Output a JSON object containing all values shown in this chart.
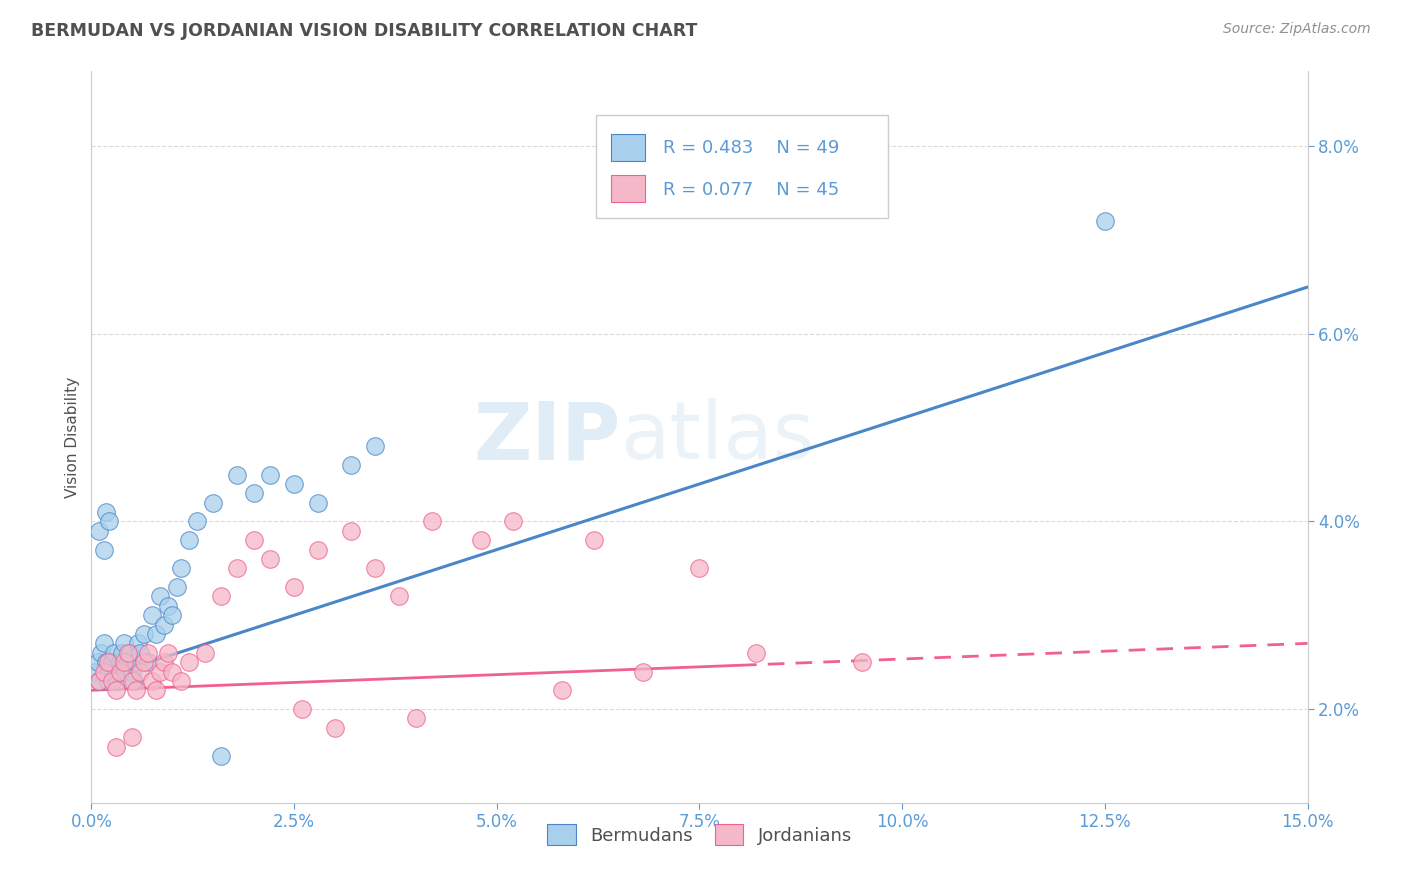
{
  "title": "BERMUDAN VS JORDANIAN VISION DISABILITY CORRELATION CHART",
  "source_text": "Source: ZipAtlas.com",
  "ylabel": "Vision Disability",
  "xmin": 0.0,
  "xmax": 15.0,
  "ymin": 1.0,
  "ymax": 8.8,
  "yticks": [
    2.0,
    4.0,
    6.0,
    8.0
  ],
  "xticks": [
    0.0,
    2.5,
    5.0,
    7.5,
    10.0,
    12.5,
    15.0
  ],
  "bermuda_color": "#A8D0EC",
  "jordan_color": "#F4B8C8",
  "bermuda_line_color": "#4A86C8",
  "jordan_line_color": "#F06090",
  "legend_R1": "R = 0.483",
  "legend_N1": "N = 49",
  "legend_R2": "R = 0.077",
  "legend_N2": "N = 45",
  "watermark_zip": "ZIP",
  "watermark_atlas": "atlas",
  "title_color": "#505050",
  "axis_color": "#5B9BD5",
  "source_color": "#909090",
  "background_color": "#FFFFFF",
  "grid_color": "#D8D8D8",
  "bermuda_x": [
    0.05,
    0.08,
    0.1,
    0.12,
    0.15,
    0.18,
    0.2,
    0.22,
    0.25,
    0.28,
    0.3,
    0.32,
    0.35,
    0.38,
    0.4,
    0.42,
    0.45,
    0.48,
    0.5,
    0.52,
    0.55,
    0.58,
    0.6,
    0.65,
    0.7,
    0.75,
    0.8,
    0.85,
    0.9,
    0.95,
    1.0,
    1.05,
    1.1,
    1.2,
    1.3,
    1.5,
    1.8,
    2.0,
    2.2,
    2.5,
    2.8,
    3.2,
    3.5,
    0.1,
    0.15,
    0.18,
    0.22,
    12.5,
    1.6
  ],
  "bermuda_y": [
    2.4,
    2.5,
    2.3,
    2.6,
    2.7,
    2.5,
    2.3,
    2.4,
    2.5,
    2.6,
    2.4,
    2.3,
    2.5,
    2.6,
    2.7,
    2.4,
    2.5,
    2.6,
    2.4,
    2.3,
    2.5,
    2.7,
    2.6,
    2.8,
    2.5,
    3.0,
    2.8,
    3.2,
    2.9,
    3.1,
    3.0,
    3.3,
    3.5,
    3.8,
    4.0,
    4.2,
    4.5,
    4.3,
    4.5,
    4.4,
    4.2,
    4.6,
    4.8,
    3.9,
    3.7,
    4.1,
    4.0,
    7.2,
    1.5
  ],
  "jordan_x": [
    0.1,
    0.15,
    0.2,
    0.25,
    0.3,
    0.35,
    0.4,
    0.45,
    0.5,
    0.55,
    0.6,
    0.65,
    0.7,
    0.75,
    0.8,
    0.85,
    0.9,
    0.95,
    1.0,
    1.1,
    1.2,
    1.4,
    1.6,
    1.8,
    2.0,
    2.2,
    2.5,
    2.8,
    3.2,
    3.5,
    3.8,
    4.2,
    4.8,
    5.2,
    6.2,
    7.5,
    2.6,
    3.0,
    4.0,
    5.8,
    6.8,
    8.2,
    9.5,
    0.3,
    0.5
  ],
  "jordan_y": [
    2.3,
    2.4,
    2.5,
    2.3,
    2.2,
    2.4,
    2.5,
    2.6,
    2.3,
    2.2,
    2.4,
    2.5,
    2.6,
    2.3,
    2.2,
    2.4,
    2.5,
    2.6,
    2.4,
    2.3,
    2.5,
    2.6,
    3.2,
    3.5,
    3.8,
    3.6,
    3.3,
    3.7,
    3.9,
    3.5,
    3.2,
    4.0,
    3.8,
    4.0,
    3.8,
    3.5,
    2.0,
    1.8,
    1.9,
    2.2,
    2.4,
    2.6,
    2.5,
    1.6,
    1.7
  ]
}
